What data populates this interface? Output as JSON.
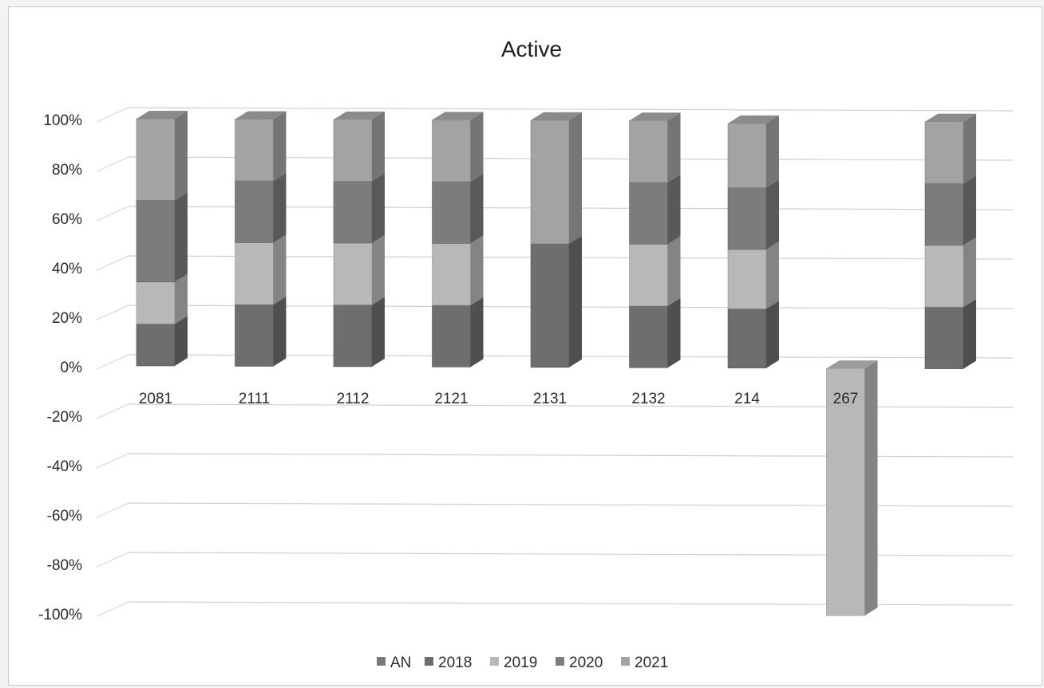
{
  "chart_data": {
    "type": "bar",
    "subtype": "3d-percent-stacked-column",
    "title": "Active",
    "xlabel": "",
    "ylabel": "",
    "ylim": [
      -1.0,
      1.0
    ],
    "y_ticks": [
      "100%",
      "80%",
      "60%",
      "40%",
      "20%",
      "0%",
      "-20%",
      "-40%",
      "-60%",
      "-80%",
      "-100%"
    ],
    "grid": true,
    "legend_position": "bottom",
    "categories": [
      "2081",
      "2111",
      "2112",
      "2121",
      "2131",
      "2132",
      "214",
      "267",
      ""
    ],
    "series": [
      {
        "name": "AN",
        "color": "#7a7a7a",
        "values": [
          0,
          0,
          0,
          0,
          0,
          0,
          0,
          0,
          0
        ]
      },
      {
        "name": "2018",
        "color": "#6e6e6e",
        "values": [
          0.17,
          0.25,
          0.25,
          0.25,
          0.5,
          0.25,
          0.24,
          0,
          0.25
        ]
      },
      {
        "name": "2019",
        "color": "#b8b8b8",
        "values": [
          0.17,
          0.25,
          0.25,
          0.25,
          0,
          0.25,
          0.24,
          -1.0,
          0.25
        ]
      },
      {
        "name": "2020",
        "color": "#7c7c7c",
        "values": [
          0.33,
          0.25,
          0.25,
          0.25,
          0,
          0.25,
          0.25,
          0,
          0.25
        ]
      },
      {
        "name": "2021",
        "color": "#a3a3a3",
        "values": [
          0.33,
          0.25,
          0.25,
          0.25,
          0.5,
          0.25,
          0.26,
          0,
          0.25
        ]
      }
    ]
  }
}
